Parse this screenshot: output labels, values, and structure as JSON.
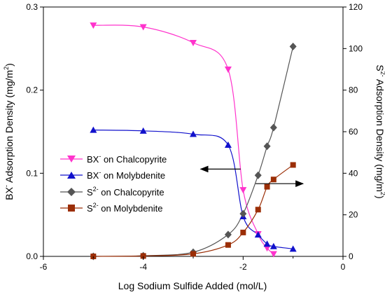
{
  "chart_data": {
    "type": "line",
    "xlabel": "Log Sodium Sulfide Added (mol/L)",
    "ylabel_left": {
      "base": "BX",
      "sup": "-",
      "rest": " Adsorption Density (mg/m",
      "unit_sup": "2",
      "close": ")"
    },
    "ylabel_right": {
      "base": "S",
      "sup": "2-",
      "rest": " Adsorption Density (mg/m",
      "unit_sup": "2",
      "close": ")"
    },
    "xlim": [
      -6,
      0
    ],
    "ylim_left": [
      0,
      0.3
    ],
    "ylim_right": [
      0,
      120
    ],
    "xticks": [
      -6,
      -4,
      -2,
      0
    ],
    "xtick_labels": [
      "-6",
      "-4",
      "-2",
      "0"
    ],
    "yticks_left": [
      0.0,
      0.1,
      0.2,
      0.3
    ],
    "ytick_labels_left": [
      "0.0",
      "0.1",
      "0.2",
      "0.3"
    ],
    "yticks_right": [
      0,
      20,
      40,
      60,
      80,
      100,
      120
    ],
    "ytick_labels_right": [
      "0",
      "20",
      "40",
      "60",
      "80",
      "100",
      "120"
    ],
    "grid": false,
    "legend_position": "center-left",
    "series": [
      {
        "key": "bx_chalcopyrite",
        "name": {
          "base": "BX",
          "sup": "-",
          "rest": " on Chalcopyrite"
        },
        "axis": "left",
        "color": "#ff33cc",
        "marker": "triangle-down",
        "x": [
          -5,
          -4,
          -3,
          -2.3,
          -2,
          -1.7,
          -1.52,
          -1.39
        ],
        "y": [
          0.278,
          0.276,
          0.257,
          0.225,
          0.08,
          0.027,
          0.01,
          0.003
        ]
      },
      {
        "key": "bx_molybdenite",
        "name": {
          "base": "BX",
          "sup": "-",
          "rest": " on Molybdenite"
        },
        "axis": "left",
        "color": "#1111cc",
        "marker": "triangle-up",
        "x": [
          -5,
          -4,
          -3,
          -2.3,
          -2,
          -1.7,
          -1.52,
          -1.39,
          -1
        ],
        "y": [
          0.152,
          0.151,
          0.147,
          0.134,
          0.048,
          0.026,
          0.015,
          0.012,
          0.009
        ]
      },
      {
        "key": "s_chalcopyrite",
        "name": {
          "base": "S",
          "sup": "2-",
          "rest": " on Chalcopyrite"
        },
        "axis": "right",
        "color": "#555555",
        "marker": "diamond",
        "x": [
          -5,
          -4,
          -3,
          -2.3,
          -2,
          -1.7,
          -1.52,
          -1.39,
          -1
        ],
        "y": [
          0,
          0.3,
          2,
          10.5,
          20.5,
          39,
          53,
          62,
          101
        ]
      },
      {
        "key": "s_molybdenite",
        "name": {
          "base": "S",
          "sup": "2-",
          "rest": " on Molybdenite"
        },
        "axis": "right",
        "color": "#9b2e06",
        "marker": "square",
        "x": [
          -5,
          -4,
          -3,
          -2.3,
          -2,
          -1.7,
          -1.52,
          -1.39,
          -1
        ],
        "y": [
          0,
          0.2,
          1.2,
          5.5,
          11.5,
          22.5,
          33.5,
          37,
          44
        ]
      }
    ]
  }
}
